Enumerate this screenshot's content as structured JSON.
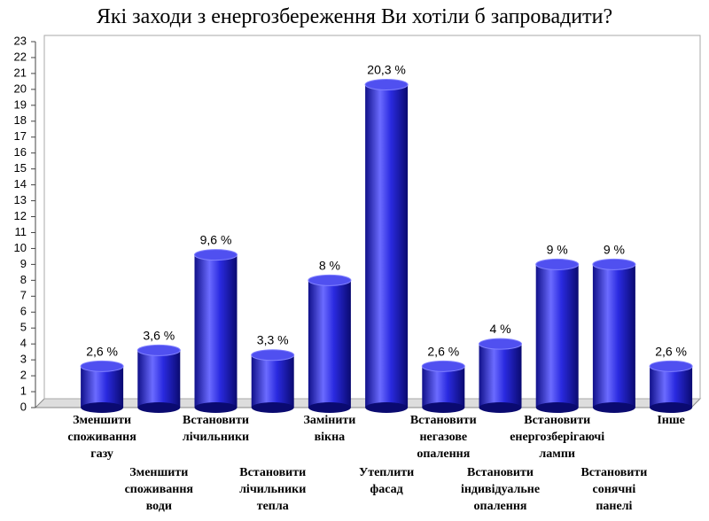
{
  "chart_data": {
    "type": "bar",
    "title": "Які заходи з енергозбереження Ви хотіли б запровадити?",
    "categories": [
      "Зменшити споживання газу",
      "Зменшити споживання води",
      "Встановити лічильники",
      "Встановити лічильники тепла",
      "Замінити вікна",
      "Утеплити фасад",
      "Встановити негазове опалення",
      "Встановити індивідуальне опалення",
      "Встановити енергозберігаючі лампи",
      "Встановити сонячні панелі",
      "Інше"
    ],
    "values": [
      2.6,
      3.6,
      9.6,
      3.3,
      8,
      20.3,
      2.6,
      4,
      9,
      9,
      2.6
    ],
    "value_labels": [
      "2,6 %",
      "3,6 %",
      "9,6 %",
      "3,3 %",
      "8 %",
      "20,3 %",
      "2,6 %",
      "4 %",
      "9 %",
      "9 %",
      "2,6 %"
    ],
    "color": "#2a2ae0",
    "ylim": [
      0,
      23
    ],
    "yticks": [
      0,
      1,
      2,
      3,
      4,
      5,
      6,
      7,
      8,
      9,
      10,
      11,
      12,
      13,
      14,
      15,
      16,
      17,
      18,
      19,
      20,
      21,
      22,
      23
    ]
  }
}
